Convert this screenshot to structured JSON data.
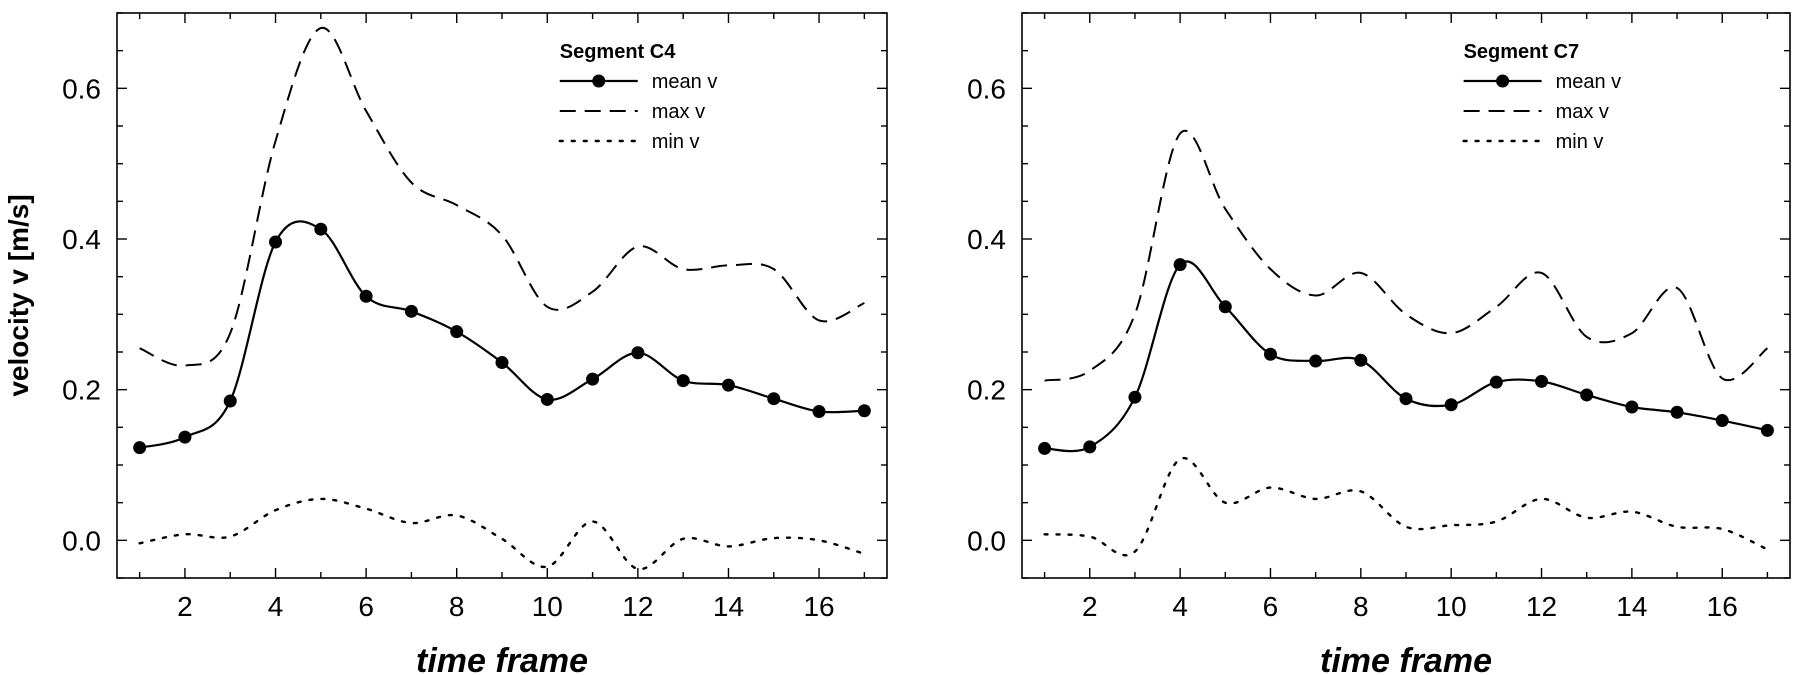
{
  "chart_data": [
    {
      "type": "line",
      "title": "Segment C4",
      "xlabel": "time frame",
      "ylabel": "velocity v [m/s]",
      "xlim": [
        0.5,
        17.5
      ],
      "ylim": [
        -0.05,
        0.7
      ],
      "xticks": [
        2,
        4,
        6,
        8,
        10,
        12,
        14,
        16
      ],
      "yticks": [
        0.0,
        0.2,
        0.4,
        0.6
      ],
      "tick_labels_x": [
        "2",
        "4",
        "6",
        "8",
        "10",
        "12",
        "14",
        "16"
      ],
      "tick_labels_y": [
        "0.0",
        "0.2",
        "0.4",
        "0.6"
      ],
      "legend_position": "top-right",
      "x": [
        1,
        2,
        3,
        4,
        5,
        6,
        7,
        8,
        9,
        10,
        11,
        12,
        13,
        14,
        15,
        16,
        17
      ],
      "series": [
        {
          "name": "mean v",
          "style": "solid-markers",
          "values": [
            0.123,
            0.137,
            0.185,
            0.396,
            0.413,
            0.324,
            0.304,
            0.277,
            0.236,
            0.187,
            0.214,
            0.249,
            0.212,
            0.206,
            0.188,
            0.171,
            0.172
          ]
        },
        {
          "name": "max v",
          "style": "dashed",
          "values": [
            0.255,
            0.232,
            0.275,
            0.53,
            0.68,
            0.57,
            0.475,
            0.445,
            0.405,
            0.31,
            0.33,
            0.39,
            0.36,
            0.365,
            0.36,
            0.292,
            0.315
          ]
        },
        {
          "name": "min v",
          "style": "dotted",
          "values": [
            -0.004,
            0.008,
            0.005,
            0.04,
            0.055,
            0.042,
            0.023,
            0.033,
            0.002,
            -0.035,
            0.025,
            -0.038,
            0.002,
            -0.008,
            0.003,
            0.0,
            -0.018
          ]
        }
      ]
    },
    {
      "type": "line",
      "title": "Segment C7",
      "xlabel": "time frame",
      "ylabel": "",
      "xlim": [
        0.5,
        17.5
      ],
      "ylim": [
        -0.05,
        0.7
      ],
      "xticks": [
        2,
        4,
        6,
        8,
        10,
        12,
        14,
        16
      ],
      "yticks": [
        0.0,
        0.2,
        0.4,
        0.6
      ],
      "tick_labels_x": [
        "2",
        "4",
        "6",
        "8",
        "10",
        "12",
        "14",
        "16"
      ],
      "tick_labels_y": [
        "0.0",
        "0.2",
        "0.4",
        "0.6"
      ],
      "legend_position": "top-right",
      "x": [
        1,
        2,
        3,
        4,
        5,
        6,
        7,
        8,
        9,
        10,
        11,
        12,
        13,
        14,
        15,
        16,
        17
      ],
      "series": [
        {
          "name": "mean v",
          "style": "solid-markers",
          "values": [
            0.122,
            0.124,
            0.19,
            0.366,
            0.31,
            0.247,
            0.238,
            0.239,
            0.188,
            0.18,
            0.21,
            0.211,
            0.193,
            0.177,
            0.17,
            0.159,
            0.146
          ]
        },
        {
          "name": "max v",
          "style": "dashed",
          "values": [
            0.212,
            0.225,
            0.3,
            0.54,
            0.44,
            0.36,
            0.325,
            0.355,
            0.3,
            0.275,
            0.31,
            0.355,
            0.27,
            0.275,
            0.335,
            0.215,
            0.255
          ]
        },
        {
          "name": "min v",
          "style": "dotted",
          "values": [
            0.008,
            0.005,
            -0.015,
            0.108,
            0.05,
            0.07,
            0.055,
            0.065,
            0.018,
            0.02,
            0.025,
            0.055,
            0.03,
            0.038,
            0.018,
            0.015,
            -0.012
          ]
        }
      ]
    }
  ]
}
